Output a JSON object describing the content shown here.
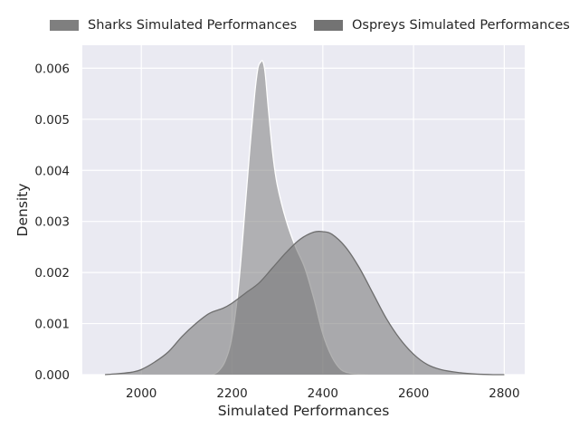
{
  "chart_data": {
    "type": "area",
    "title": "",
    "xlabel": "Simulated Performances",
    "ylabel": "Density",
    "xlim": [
      1870,
      2845
    ],
    "ylim": [
      0,
      0.00645
    ],
    "x_ticks": [
      2000,
      2200,
      2400,
      2600,
      2800
    ],
    "x_tick_labels": [
      "2000",
      "2200",
      "2400",
      "2600",
      "2800"
    ],
    "y_ticks": [
      0,
      0.001,
      0.002,
      0.003,
      0.004,
      0.005,
      0.006
    ],
    "y_tick_labels": [
      "0.000",
      "0.001",
      "0.002",
      "0.003",
      "0.004",
      "0.005",
      "0.006"
    ],
    "grid": true,
    "stacked": false,
    "legend_position": "top",
    "series": [
      {
        "name": "Sharks Simulated Performances",
        "color": "#7f7f7f",
        "x": [
          2157,
          2170,
          2185,
          2200,
          2215,
          2230,
          2240,
          2250,
          2257,
          2263,
          2268,
          2273,
          2280,
          2290,
          2300,
          2320,
          2340,
          2360,
          2380,
          2400,
          2420,
          2440,
          2460,
          2480,
          2500
        ],
        "values": [
          0.0,
          7e-05,
          0.00027,
          0.00075,
          0.0018,
          0.0034,
          0.0045,
          0.0055,
          0.006,
          0.00612,
          0.00613,
          0.0059,
          0.0052,
          0.0043,
          0.0037,
          0.003,
          0.0025,
          0.0021,
          0.0015,
          0.0008,
          0.00035,
          0.0001,
          3e-05,
          1e-05,
          0.0
        ]
      },
      {
        "name": "Ospreys Simulated Performances",
        "color": "#737373",
        "x": [
          1920,
          1950,
          1980,
          2000,
          2030,
          2060,
          2090,
          2120,
          2150,
          2180,
          2200,
          2230,
          2260,
          2290,
          2320,
          2350,
          2380,
          2400,
          2420,
          2450,
          2480,
          2510,
          2540,
          2570,
          2600,
          2630,
          2660,
          2700,
          2740,
          2780,
          2800
        ],
        "values": [
          0.0,
          2e-05,
          5e-05,
          0.0001,
          0.00025,
          0.00045,
          0.00075,
          0.001,
          0.0012,
          0.0013,
          0.0014,
          0.0016,
          0.0018,
          0.0021,
          0.0024,
          0.00265,
          0.00279,
          0.0028,
          0.00275,
          0.0025,
          0.0021,
          0.0016,
          0.0011,
          0.0007,
          0.0004,
          0.0002,
          0.0001,
          4e-05,
          1e-05,
          0.0,
          0.0
        ]
      }
    ]
  }
}
